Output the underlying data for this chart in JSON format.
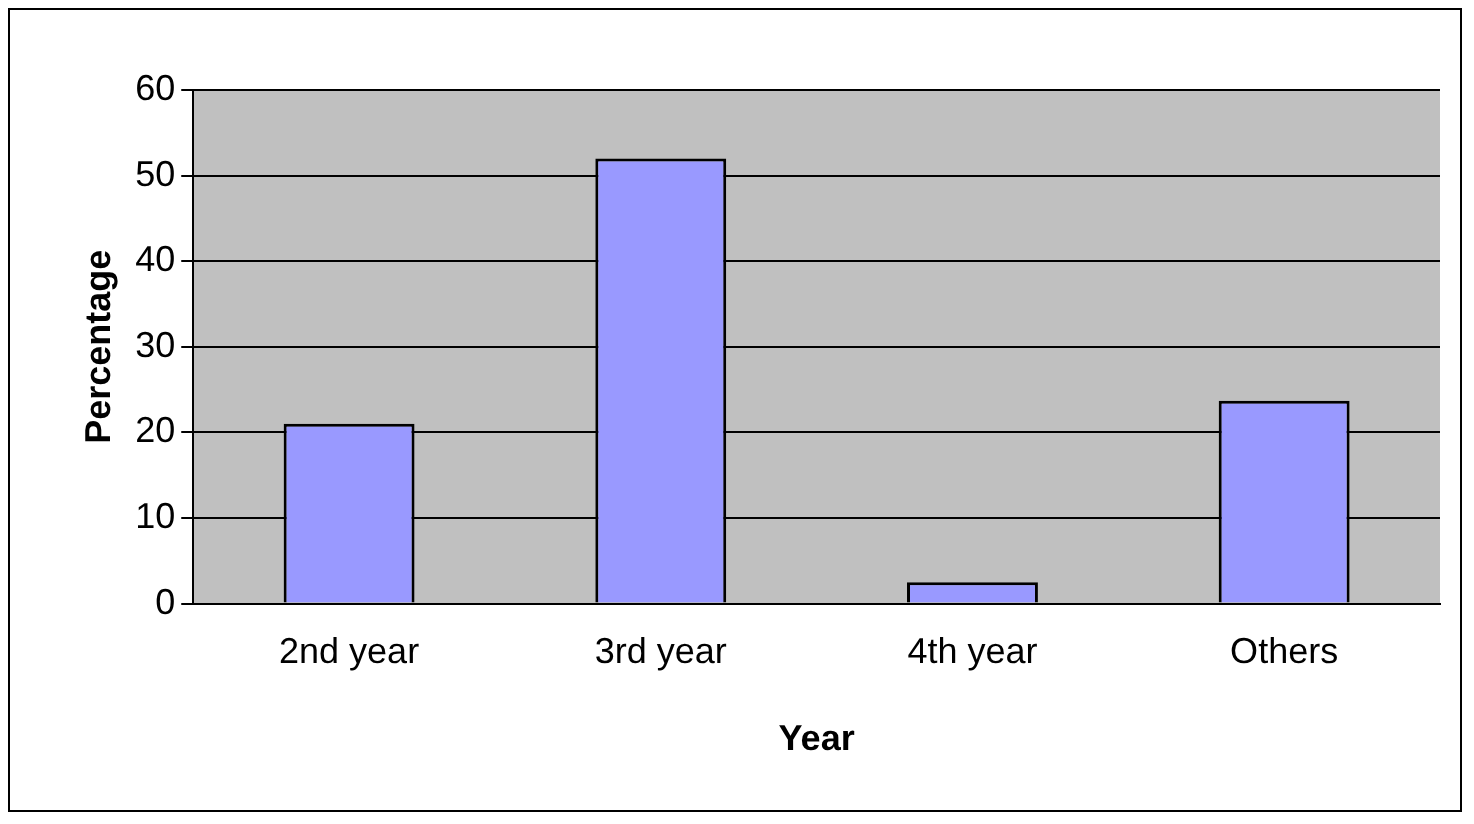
{
  "chart_data": {
    "type": "bar",
    "xlabel": "Year",
    "ylabel": "Percentage",
    "categories": [
      "2nd year",
      "3rd year",
      "4th year",
      "Others"
    ],
    "values": [
      21,
      52,
      2.5,
      23.7
    ],
    "color": "#9999ff",
    "ylim": [
      0,
      60
    ],
    "yticks": [
      0,
      10,
      20,
      30,
      40,
      50,
      60
    ],
    "grid": "y",
    "legend": false
  }
}
